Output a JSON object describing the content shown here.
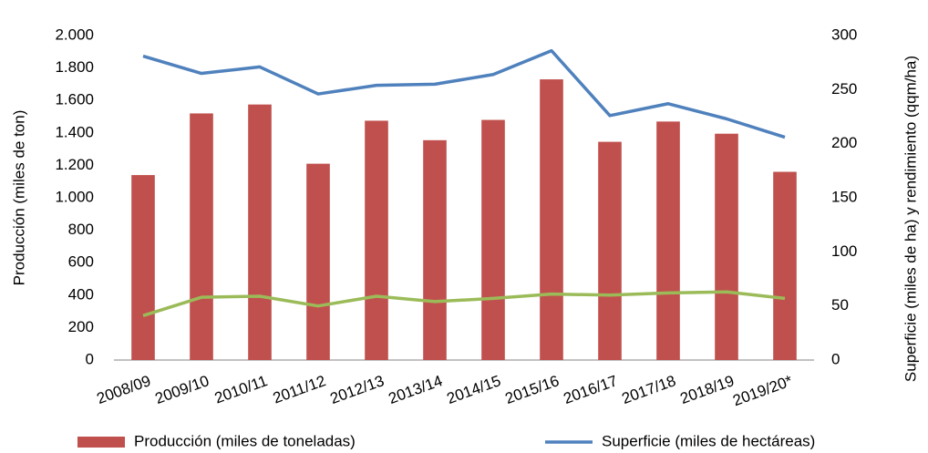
{
  "chart_data": {
    "type": "bar",
    "categories": [
      "2008/09",
      "2009/10",
      "2010/11",
      "2011/12",
      "2012/13",
      "2013/14",
      "2014/15",
      "2015/16",
      "2016/17",
      "2017/18",
      "2018/19",
      "2019/20*"
    ],
    "y_label": "Producción (miles de ton)",
    "y2_label": "Superficie (miles de ha) y rendimiento (qqm/ha)",
    "series": [
      {
        "name": "Producción (miles de toneladas)",
        "type": "bar",
        "color": "#c0504d",
        "values": [
          1140,
          1520,
          1575,
          1210,
          1475,
          1355,
          1480,
          1730,
          1345,
          1470,
          1395,
          1160
        ]
      },
      {
        "name": "Superficie (miles de hectáreas)",
        "type": "line",
        "axis": "y2",
        "color": "#4f81bd",
        "values": [
          281,
          265,
          271,
          246,
          254,
          255,
          264,
          286,
          226,
          237,
          223,
          206
        ]
      },
      {
        "type": "line",
        "axis": "y2",
        "color": "#9bbb59",
        "values": [
          41,
          58,
          59,
          50,
          59,
          54,
          57,
          61,
          60,
          62,
          63,
          57
        ]
      }
    ],
    "ylim": [
      0,
      2000
    ],
    "yticks": [
      0,
      200,
      400,
      600,
      800,
      {
        "value": 1000,
        "label": "1.000"
      },
      {
        "value": 1200,
        "label": "1.200"
      },
      {
        "value": 1400,
        "label": "1.400"
      },
      {
        "value": 1600,
        "label": "1.600"
      },
      {
        "value": 1800,
        "label": "1.800"
      },
      {
        "value": 2000,
        "label": "2.000"
      }
    ],
    "y2lim": [
      0,
      300
    ],
    "y2ticks": [
      0,
      50,
      100,
      150,
      200,
      250,
      300
    ],
    "grid": false
  }
}
